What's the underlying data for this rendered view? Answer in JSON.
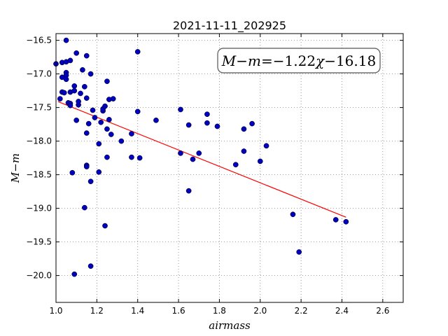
{
  "chart_data": {
    "type": "scatter",
    "title": "2021-11-11_202925",
    "xlabel": "airmass",
    "ylabel": "M−m",
    "annotation": {
      "lhs": "M−m",
      "equals": "=",
      "coef": "−1.22",
      "var": "χ",
      "intercept": "−16.18"
    },
    "xlim": [
      1.0,
      2.7
    ],
    "ylim": [
      -20.4,
      -16.4
    ],
    "x_ticks": [
      1.0,
      1.2,
      1.4,
      1.6,
      1.8,
      2.0,
      2.2,
      2.4,
      2.6
    ],
    "x_tick_labels": [
      "1.0",
      "1.2",
      "1.4",
      "1.6",
      "1.8",
      "2.0",
      "2.2",
      "2.4",
      "2.6"
    ],
    "y_ticks": [
      -16.5,
      -17.0,
      -17.5,
      -18.0,
      -18.5,
      -19.0,
      -19.5,
      -20.0
    ],
    "y_tick_labels": [
      "−16.5",
      "−17.0",
      "−17.5",
      "−18.0",
      "−18.5",
      "−19.0",
      "−19.5",
      "−20.0"
    ],
    "grid": true,
    "colors": {
      "points": "#0000bf",
      "fit": "#ff0000",
      "grid": "#808080"
    },
    "fit": {
      "slope": -1.22,
      "intercept": -16.18,
      "x_range": [
        1.01,
        2.42
      ]
    },
    "points": [
      [
        1.0,
        -16.85
      ],
      [
        1.02,
        -17.37
      ],
      [
        1.03,
        -16.83
      ],
      [
        1.03,
        -17.05
      ],
      [
        1.03,
        -17.27
      ],
      [
        1.04,
        -17.28
      ],
      [
        1.05,
        -16.5
      ],
      [
        1.05,
        -16.82
      ],
      [
        1.05,
        -16.98
      ],
      [
        1.05,
        -17.02
      ],
      [
        1.05,
        -17.08
      ],
      [
        1.06,
        -17.43
      ],
      [
        1.07,
        -16.8
      ],
      [
        1.07,
        -17.27
      ],
      [
        1.07,
        -17.44
      ],
      [
        1.07,
        -17.47
      ],
      [
        1.08,
        -18.47
      ],
      [
        1.09,
        -17.18
      ],
      [
        1.09,
        -17.25
      ],
      [
        1.09,
        -19.98
      ],
      [
        1.1,
        -16.69
      ],
      [
        1.1,
        -17.69
      ],
      [
        1.11,
        -17.46
      ],
      [
        1.11,
        -17.41
      ],
      [
        1.12,
        -17.29
      ],
      [
        1.13,
        -16.94
      ],
      [
        1.14,
        -17.19
      ],
      [
        1.14,
        -18.99
      ],
      [
        1.15,
        -16.73
      ],
      [
        1.15,
        -17.36
      ],
      [
        1.15,
        -17.88
      ],
      [
        1.15,
        -18.36
      ],
      [
        1.15,
        -18.38
      ],
      [
        1.16,
        -17.74
      ],
      [
        1.17,
        -17.0
      ],
      [
        1.17,
        -18.6
      ],
      [
        1.17,
        -19.86
      ],
      [
        1.18,
        -17.54
      ],
      [
        1.19,
        -17.65
      ],
      [
        1.21,
        -18.04
      ],
      [
        1.21,
        -18.46
      ],
      [
        1.22,
        -17.72
      ],
      [
        1.23,
        -17.55
      ],
      [
        1.23,
        -17.52
      ],
      [
        1.24,
        -17.48
      ],
      [
        1.24,
        -19.26
      ],
      [
        1.25,
        -17.11
      ],
      [
        1.25,
        -17.82
      ],
      [
        1.25,
        -18.24
      ],
      [
        1.26,
        -17.38
      ],
      [
        1.26,
        -17.68
      ],
      [
        1.27,
        -17.9
      ],
      [
        1.28,
        -17.37
      ],
      [
        1.32,
        -18.0
      ],
      [
        1.37,
        -17.89
      ],
      [
        1.37,
        -18.24
      ],
      [
        1.4,
        -16.67
      ],
      [
        1.4,
        -17.56
      ],
      [
        1.41,
        -18.25
      ],
      [
        1.49,
        -17.69
      ],
      [
        1.61,
        -17.53
      ],
      [
        1.61,
        -18.18
      ],
      [
        1.65,
        -18.74
      ],
      [
        1.65,
        -17.76
      ],
      [
        1.67,
        -18.27
      ],
      [
        1.7,
        -18.18
      ],
      [
        1.74,
        -17.6
      ],
      [
        1.74,
        -17.73
      ],
      [
        1.79,
        -17.78
      ],
      [
        1.88,
        -18.35
      ],
      [
        1.92,
        -17.82
      ],
      [
        1.92,
        -18.15
      ],
      [
        1.96,
        -17.74
      ],
      [
        2.0,
        -18.3
      ],
      [
        2.03,
        -18.07
      ],
      [
        2.16,
        -19.09
      ],
      [
        2.19,
        -19.65
      ],
      [
        2.37,
        -19.17
      ],
      [
        2.42,
        -19.2
      ]
    ]
  }
}
